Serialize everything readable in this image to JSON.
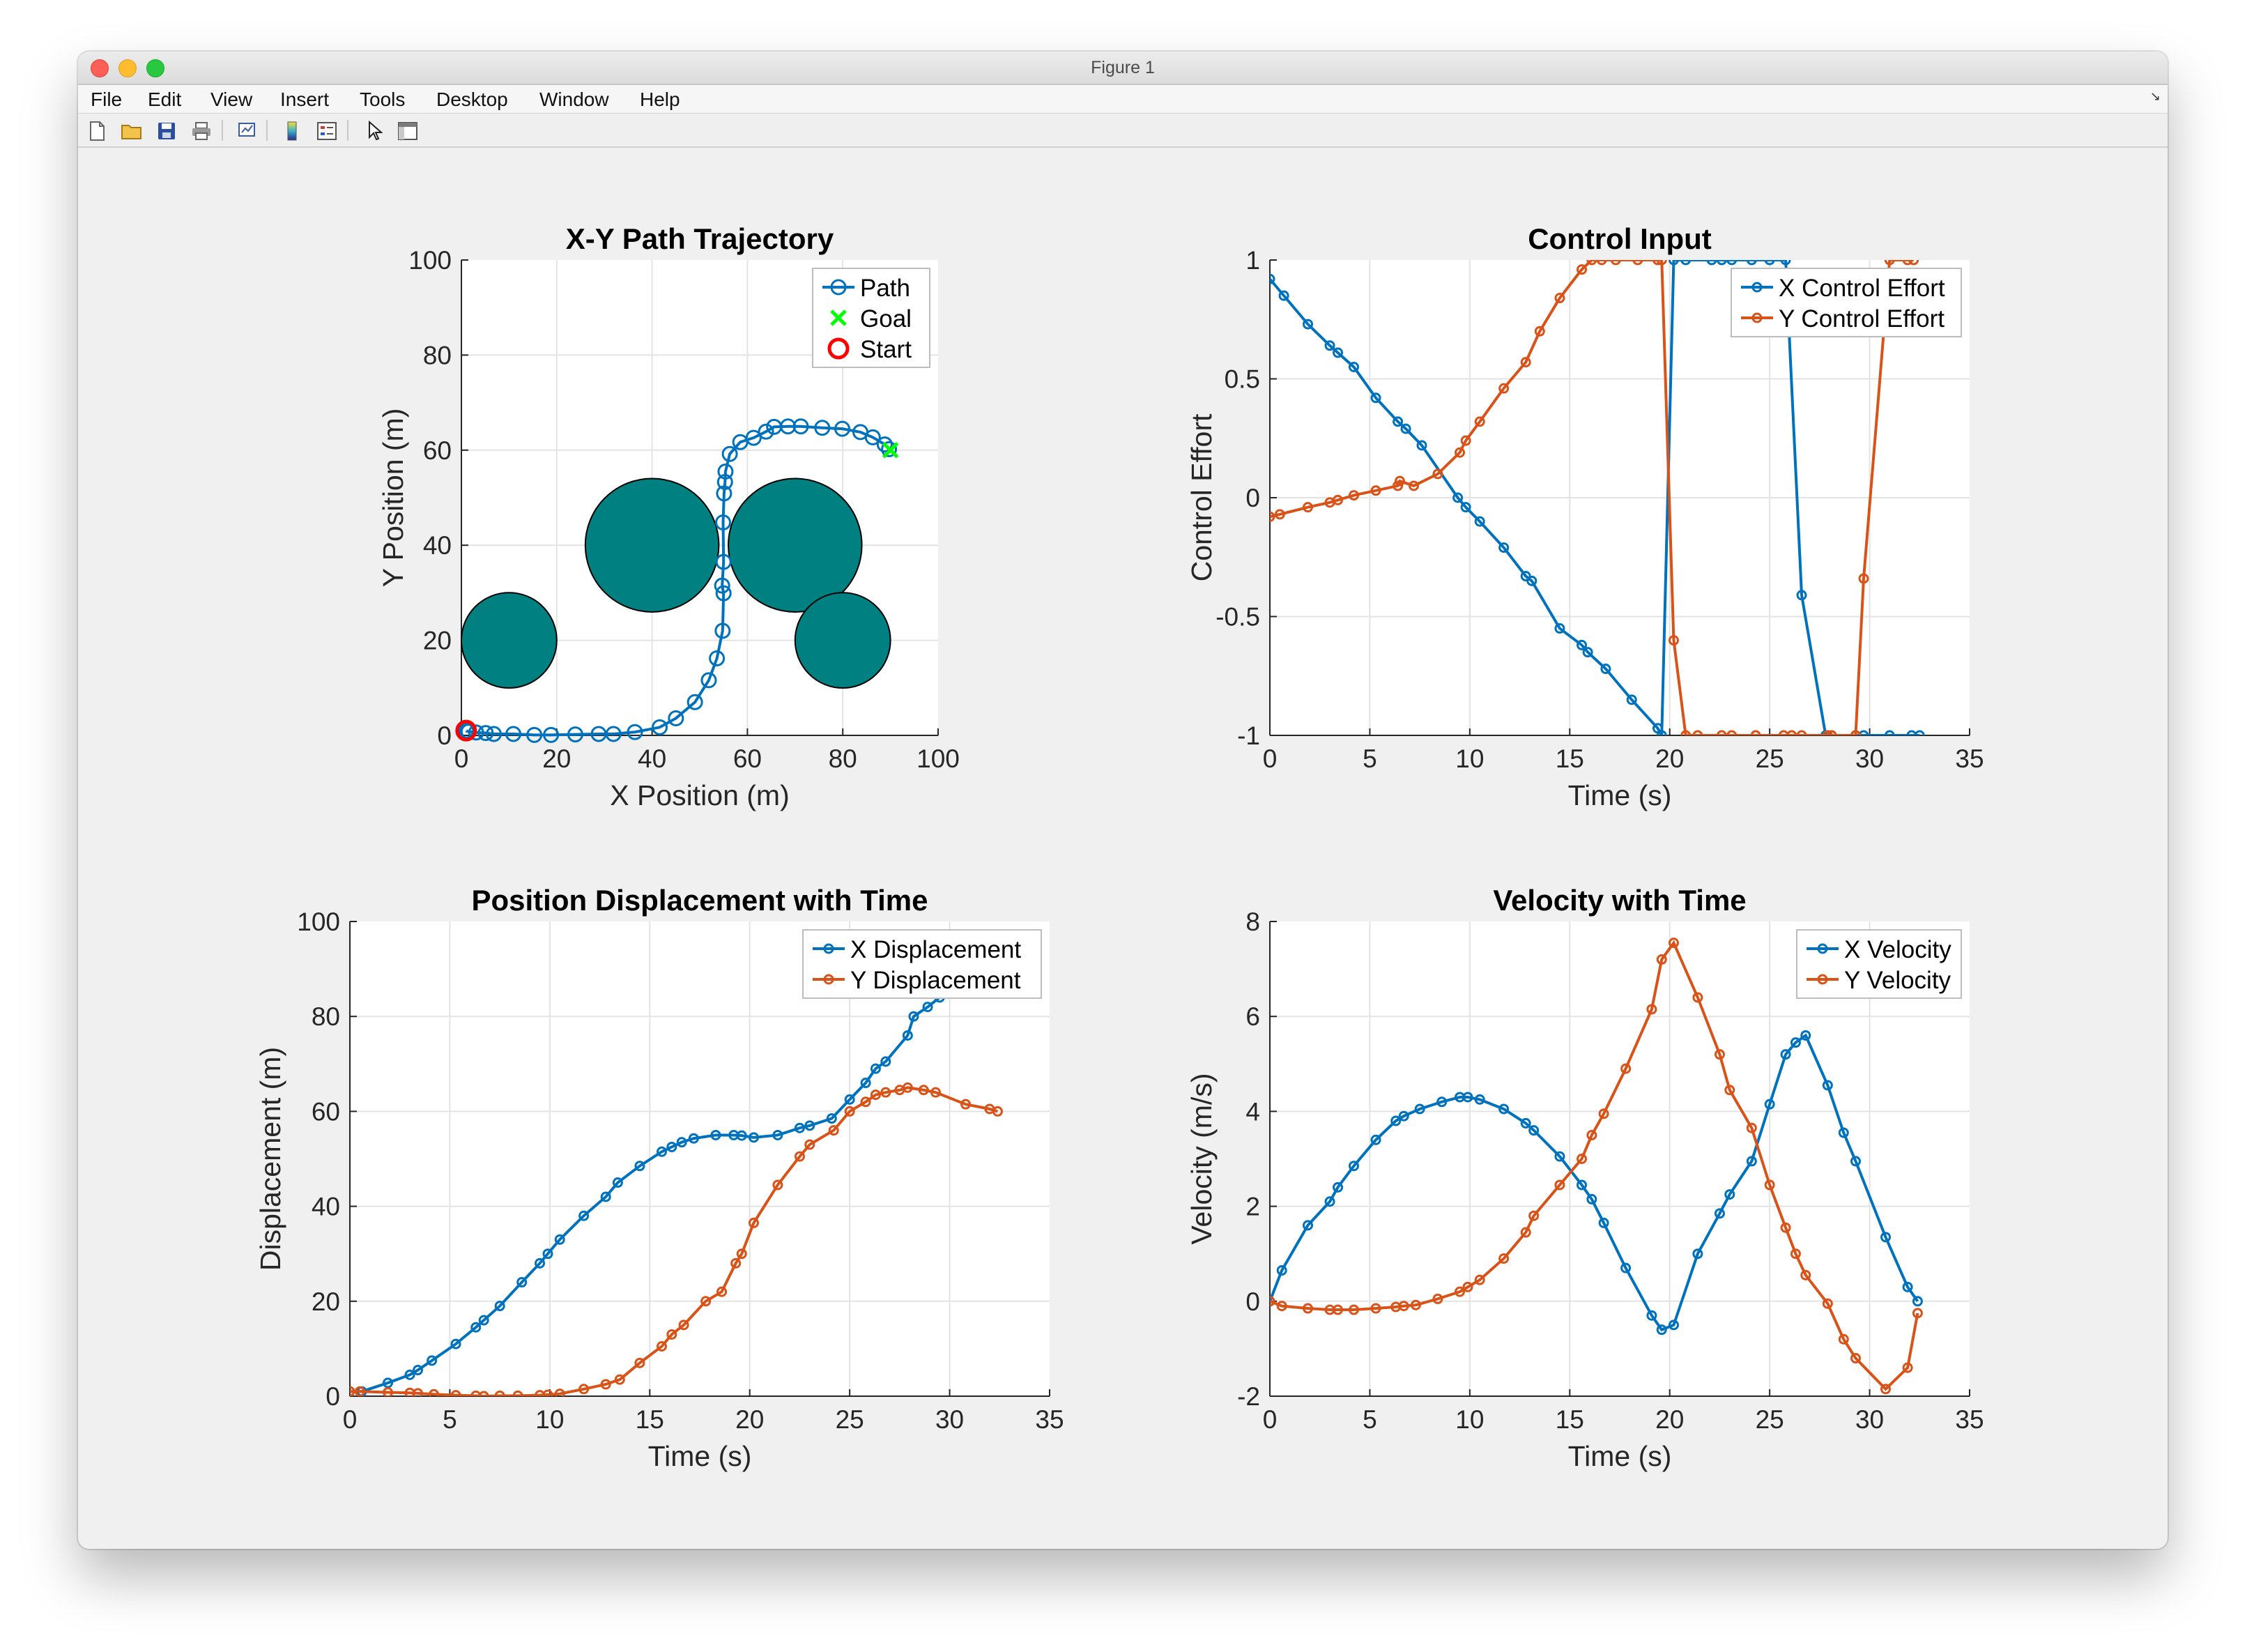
{
  "window": {
    "title": "Figure 1"
  },
  "menu": [
    "File",
    "Edit",
    "View",
    "Insert",
    "Tools",
    "Desktop",
    "Window",
    "Help"
  ],
  "menu_corner_icon": "dock-arrow-icon",
  "toolbar": [
    {
      "name": "new-figure-icon"
    },
    {
      "name": "open-file-icon"
    },
    {
      "name": "save-icon"
    },
    {
      "name": "print-icon"
    },
    {
      "name": "link-plot-icon"
    },
    {
      "name": "insert-colorbar-icon"
    },
    {
      "name": "insert-legend-icon"
    },
    {
      "name": "edit-plot-arrow-icon"
    },
    {
      "name": "property-inspector-icon"
    }
  ],
  "colors": {
    "blue": "#0072bd",
    "orange": "#d95319",
    "teal": "#008080",
    "green": "#00ff00",
    "red": "#ff0000"
  },
  "chart_data": [
    {
      "type": "scatter",
      "title": "X-Y Path Trajectory",
      "xlabel": "X Position (m)",
      "ylabel": "Y Position (m)",
      "xlim": [
        0,
        100
      ],
      "ylim": [
        0,
        100
      ],
      "xticks": [
        0,
        20,
        40,
        60,
        80,
        100
      ],
      "yticks": [
        0,
        20,
        40,
        60,
        80,
        100
      ],
      "grid": true,
      "legend_position": "top-right",
      "legend": [
        "Path",
        "Goal",
        "Start"
      ],
      "obstacles": [
        {
          "cx": 10,
          "cy": 20,
          "r": 10
        },
        {
          "cx": 40,
          "cy": 40,
          "r": 14
        },
        {
          "cx": 70,
          "cy": 40,
          "r": 14
        },
        {
          "cx": 80,
          "cy": 20,
          "r": 10
        }
      ],
      "path": {
        "x": [
          1.0,
          1.1,
          1.5,
          3.1,
          5.1,
          6.8,
          10.9,
          15.3,
          18.8,
          23.9,
          28.8,
          31.9,
          36.4,
          41.6,
          45.0,
          49.0,
          51.9,
          53.6,
          54.8,
          55.0,
          54.7,
          55.0,
          54.9,
          55.1,
          55.3,
          55.4,
          56.3,
          58.5,
          61.3,
          63.9,
          65.6,
          68.5,
          71.2,
          75.7,
          79.9,
          83.7,
          86.3,
          88.8,
          89.7
        ],
        "y": [
          1.0,
          0.9,
          0.8,
          0.6,
          0.5,
          0.3,
          0.3,
          0.1,
          0.1,
          0.2,
          0.3,
          0.3,
          0.7,
          1.7,
          3.6,
          7.0,
          11.6,
          16.2,
          22.0,
          29.9,
          31.5,
          36.5,
          44.8,
          50.9,
          53.3,
          55.5,
          59.2,
          61.7,
          62.6,
          63.9,
          64.9,
          65.0,
          65.0,
          64.7,
          64.5,
          63.8,
          62.7,
          61.2,
          60.2
        ]
      },
      "goal": {
        "x": 90,
        "y": 60
      },
      "start": {
        "x": 1,
        "y": 1
      }
    },
    {
      "type": "line",
      "title": "Control Input",
      "xlabel": "Time (s)",
      "ylabel": "Control Effort",
      "xlim": [
        0,
        35
      ],
      "ylim": [
        -1,
        1
      ],
      "xticks": [
        0,
        5,
        10,
        15,
        20,
        25,
        30,
        35
      ],
      "yticks": [
        -1,
        -0.5,
        0,
        0.5,
        1
      ],
      "ytick_labels": [
        "-1",
        "-0.5",
        "0",
        "0.5",
        "1"
      ],
      "grid": true,
      "legend_position": "top-right",
      "series": [
        {
          "name": "X Control Effort",
          "x": [
            0,
            0.7,
            1.9,
            3.0,
            3.4,
            4.2,
            5.3,
            6.4,
            6.8,
            7.6,
            9.4,
            9.8,
            10.5,
            11.7,
            12.8,
            13.1,
            14.5,
            15.6,
            15.9,
            16.8,
            18.1,
            19.4,
            19.6,
            20.2,
            20.8,
            22.1,
            22.6,
            23.1,
            24.1,
            25.0,
            25.8,
            26.6,
            27.8,
            28.1,
            29.3,
            29.7,
            31.0,
            32.1,
            32.5
          ],
          "y": [
            0.92,
            0.85,
            0.73,
            0.64,
            0.61,
            0.55,
            0.42,
            0.32,
            0.29,
            0.22,
            0.0,
            -0.04,
            -0.1,
            -0.21,
            -0.33,
            -0.35,
            -0.55,
            -0.62,
            -0.65,
            -0.72,
            -0.85,
            -0.97,
            -1.0,
            1.0,
            1.0,
            1.0,
            1.0,
            1.0,
            1.0,
            1.0,
            1.0,
            -0.41,
            -1.0,
            -1.0,
            -1.0,
            -1.0,
            -1.0,
            -1.0,
            -1.0
          ]
        },
        {
          "name": "Y Control Effort",
          "x": [
            0,
            0.5,
            1.9,
            3.0,
            3.4,
            4.2,
            5.3,
            6.4,
            6.5,
            7.2,
            8.4,
            9.5,
            9.8,
            10.5,
            11.7,
            12.8,
            13.5,
            14.5,
            15.6,
            16.1,
            16.6,
            17.3,
            18.4,
            19.4,
            19.6,
            20.2,
            20.8,
            21.4,
            22.6,
            23.1,
            24.3,
            25.7,
            26.1,
            26.6,
            27.9,
            28.1,
            29.3,
            29.7,
            31.0,
            31.9,
            32.2
          ],
          "y": [
            -0.08,
            -0.07,
            -0.04,
            -0.02,
            -0.01,
            0.01,
            0.03,
            0.05,
            0.07,
            0.05,
            0.1,
            0.19,
            0.24,
            0.32,
            0.46,
            0.57,
            0.7,
            0.84,
            0.96,
            1.0,
            1.0,
            1.0,
            1.0,
            1.0,
            1.0,
            -0.6,
            -1.0,
            -1.0,
            -1.0,
            -1.0,
            -1.0,
            -1.0,
            -1.0,
            -1.0,
            -1.0,
            -1.0,
            -1.0,
            -0.34,
            1.0,
            1.0,
            1.0
          ]
        }
      ]
    },
    {
      "type": "line",
      "title": "Position Displacement with Time",
      "xlabel": "Time (s)",
      "ylabel": "Displacement (m)",
      "xlim": [
        0,
        35
      ],
      "ylim": [
        0,
        100
      ],
      "xticks": [
        0,
        5,
        10,
        15,
        20,
        25,
        30,
        35
      ],
      "yticks": [
        0,
        20,
        40,
        60,
        80,
        100
      ],
      "grid": true,
      "legend_position": "top-right",
      "series": [
        {
          "name": "X Displacement",
          "x": [
            0,
            0.6,
            1.9,
            3.0,
            3.4,
            4.1,
            5.3,
            6.3,
            6.7,
            7.5,
            8.6,
            9.5,
            9.9,
            10.5,
            11.7,
            12.8,
            13.4,
            14.5,
            15.6,
            16.1,
            16.6,
            17.2,
            18.3,
            19.2,
            19.6,
            20.2,
            21.4,
            22.5,
            23.0,
            24.1,
            25.0,
            25.8,
            26.3,
            26.8,
            27.9,
            28.2,
            28.9,
            29.5
          ],
          "y": [
            1,
            1,
            2.8,
            4.5,
            5.5,
            7.5,
            11,
            14.5,
            16,
            19,
            24,
            28,
            30,
            33,
            38,
            42,
            45,
            48.5,
            51.5,
            52.5,
            53.5,
            54.3,
            55,
            55,
            54.9,
            54.5,
            55,
            56.5,
            57,
            58.5,
            62.5,
            66,
            69,
            70.5,
            76,
            80,
            82,
            84
          ]
        },
        {
          "name": "Y Displacement",
          "x": [
            0,
            0.5,
            1.9,
            3.0,
            3.4,
            4.2,
            5.3,
            6.3,
            6.7,
            7.5,
            8.4,
            9.5,
            9.9,
            10.5,
            11.7,
            12.8,
            13.5,
            14.5,
            15.6,
            16.1,
            16.7,
            17.8,
            18.6,
            19.3,
            19.6,
            20.2,
            21.4,
            22.5,
            23.0,
            24.2,
            25.0,
            25.8,
            26.3,
            26.8,
            27.5,
            27.9,
            28.7,
            29.3,
            30.8,
            32.0,
            32.4
          ],
          "y": [
            1,
            1,
            0.8,
            0.7,
            0.6,
            0.4,
            0.2,
            0.1,
            0.0,
            0.1,
            0.1,
            0.2,
            0.3,
            0.5,
            1.5,
            2.5,
            3.5,
            7.0,
            10.5,
            13.0,
            15.0,
            20.0,
            22.0,
            28.0,
            30.0,
            36.5,
            44.5,
            50.5,
            53.0,
            56.0,
            60.0,
            62.0,
            63.5,
            64.0,
            64.5,
            65.0,
            64.5,
            64.0,
            61.5,
            60.5,
            60.0
          ]
        }
      ]
    },
    {
      "type": "line",
      "title": "Velocity with Time",
      "xlabel": "Time (s)",
      "ylabel": "Velocity (m/s)",
      "xlim": [
        0,
        35
      ],
      "ylim": [
        -2,
        8
      ],
      "xticks": [
        0,
        5,
        10,
        15,
        20,
        25,
        30,
        35
      ],
      "yticks": [
        -2,
        0,
        2,
        4,
        6,
        8
      ],
      "grid": true,
      "legend_position": "top-right",
      "series": [
        {
          "name": "X Velocity",
          "x": [
            0,
            0.6,
            1.9,
            3.0,
            3.4,
            4.2,
            5.3,
            6.3,
            6.7,
            7.5,
            8.6,
            9.5,
            9.9,
            10.5,
            11.7,
            12.8,
            13.2,
            14.5,
            15.6,
            16.1,
            16.7,
            17.8,
            19.1,
            19.6,
            20.2,
            21.4,
            22.5,
            23.0,
            24.1,
            25.0,
            25.8,
            26.3,
            26.8,
            27.9,
            28.7,
            29.3,
            30.8,
            31.9,
            32.4
          ],
          "y": [
            0,
            0.65,
            1.6,
            2.1,
            2.4,
            2.85,
            3.4,
            3.8,
            3.9,
            4.05,
            4.2,
            4.3,
            4.3,
            4.25,
            4.05,
            3.75,
            3.6,
            3.05,
            2.45,
            2.15,
            1.65,
            0.7,
            -0.3,
            -0.6,
            -0.5,
            1.0,
            1.85,
            2.25,
            2.95,
            4.15,
            5.2,
            5.45,
            5.6,
            4.55,
            3.55,
            2.95,
            1.35,
            0.3,
            0.0
          ]
        },
        {
          "name": "Y Velocity",
          "x": [
            0,
            0.6,
            1.9,
            3.0,
            3.4,
            4.2,
            5.3,
            6.3,
            6.7,
            7.3,
            8.4,
            9.5,
            9.9,
            10.5,
            11.7,
            12.8,
            13.2,
            14.5,
            15.6,
            16.1,
            16.7,
            17.8,
            19.1,
            19.6,
            20.2,
            21.4,
            22.5,
            23.0,
            24.1,
            25.0,
            25.8,
            26.3,
            26.8,
            27.9,
            28.7,
            29.3,
            30.8,
            31.9,
            32.4
          ],
          "y": [
            0,
            -0.1,
            -0.15,
            -0.18,
            -0.18,
            -0.18,
            -0.15,
            -0.12,
            -0.1,
            -0.08,
            0.05,
            0.2,
            0.3,
            0.45,
            0.9,
            1.45,
            1.8,
            2.45,
            3.0,
            3.5,
            3.95,
            4.9,
            6.15,
            7.2,
            7.55,
            6.4,
            5.2,
            4.45,
            3.65,
            2.45,
            1.55,
            1.0,
            0.55,
            -0.05,
            -0.8,
            -1.2,
            -1.85,
            -1.4,
            -0.25
          ]
        }
      ]
    }
  ]
}
